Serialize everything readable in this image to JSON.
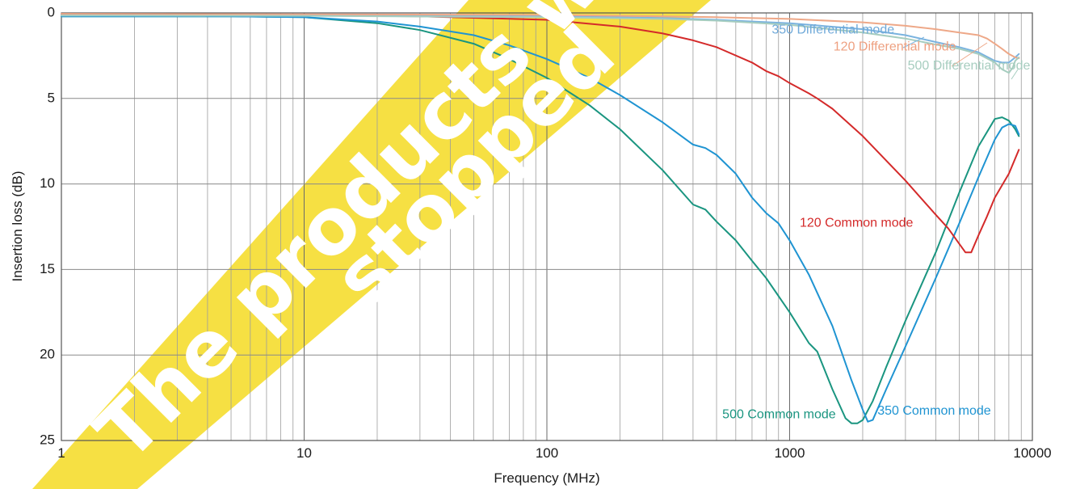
{
  "chart_data": {
    "type": "line",
    "xlabel": "Frequency (MHz)",
    "ylabel": "Insertion loss (dB)",
    "x_scale": "log",
    "xlim": [
      1,
      10000
    ],
    "ylim": [
      0,
      25
    ],
    "y_inverted": true,
    "grid": true,
    "x_ticks": [
      1,
      10,
      100,
      1000,
      10000
    ],
    "x_tick_labels": [
      "1",
      "10",
      "100",
      "1000",
      "10000"
    ],
    "y_ticks": [
      0,
      5,
      10,
      15,
      20,
      25
    ],
    "y_tick_labels": [
      "0",
      "5",
      "10",
      "15",
      "20",
      "25"
    ],
    "series": [
      {
        "name": "500 Common mode",
        "color": "#1a9580",
        "x": [
          1,
          5,
          10,
          20,
          30,
          50,
          70,
          100,
          150,
          200,
          300,
          400,
          450,
          500,
          600,
          700,
          800,
          1000,
          1200,
          1300,
          1500,
          1700,
          1800,
          1900,
          2000,
          2200,
          2500,
          3000,
          4000,
          5000,
          6000,
          7000,
          7500,
          8000,
          8500,
          8800
        ],
        "y": [
          0.2,
          0.2,
          0.25,
          0.6,
          1.0,
          1.8,
          2.7,
          3.8,
          5.4,
          6.8,
          9.2,
          11.2,
          11.5,
          12.2,
          13.3,
          14.5,
          15.5,
          17.5,
          19.3,
          19.8,
          22.0,
          23.7,
          24.0,
          24.0,
          23.8,
          22.7,
          20.7,
          18.0,
          14.0,
          10.5,
          7.8,
          6.2,
          6.1,
          6.3,
          6.8,
          7.2
        ]
      },
      {
        "name": "350 Common mode",
        "color": "#1f94d2",
        "x": [
          1,
          5,
          10,
          20,
          30,
          50,
          70,
          100,
          150,
          200,
          300,
          400,
          450,
          500,
          600,
          700,
          800,
          900,
          1000,
          1200,
          1500,
          1800,
          2000,
          2100,
          2200,
          2500,
          3000,
          4000,
          5000,
          6000,
          7000,
          7500,
          8000,
          8500,
          8800
        ],
        "y": [
          0.2,
          0.2,
          0.25,
          0.5,
          0.8,
          1.3,
          1.9,
          2.7,
          3.8,
          4.8,
          6.4,
          7.7,
          7.9,
          8.3,
          9.4,
          10.8,
          11.7,
          12.3,
          13.3,
          15.3,
          18.3,
          21.5,
          23.2,
          23.9,
          23.8,
          22.0,
          19.5,
          15.5,
          12.3,
          9.6,
          7.4,
          6.7,
          6.5,
          6.6,
          7.1
        ]
      },
      {
        "name": "120 Common mode",
        "color": "#d42a2a",
        "x": [
          1,
          10,
          30,
          100,
          200,
          300,
          400,
          500,
          700,
          800,
          900,
          1000,
          1200,
          1300,
          1500,
          2000,
          3000,
          4000,
          4500,
          5000,
          5300,
          5600,
          6000,
          6500,
          7000,
          8000,
          8800
        ],
        "y": [
          0.1,
          0.15,
          0.2,
          0.4,
          0.8,
          1.2,
          1.6,
          2.0,
          2.9,
          3.4,
          3.7,
          4.1,
          4.7,
          5.0,
          5.6,
          7.2,
          9.8,
          11.8,
          12.6,
          13.5,
          14.0,
          14.0,
          13.0,
          11.9,
          10.8,
          9.4,
          8.0
        ]
      },
      {
        "name": "350 Differential mode",
        "color": "#7ab3df",
        "x": [
          1,
          10,
          100,
          300,
          500,
          1000,
          2000,
          3000,
          4000,
          5000,
          6000,
          7000,
          7500,
          8000,
          8500,
          8800
        ],
        "y": [
          0.1,
          0.12,
          0.18,
          0.3,
          0.4,
          0.6,
          0.95,
          1.3,
          1.7,
          2.0,
          2.3,
          2.8,
          2.9,
          2.9,
          2.6,
          2.4
        ]
      },
      {
        "name": "120 Differential mode",
        "color": "#eea888",
        "x": [
          1,
          10,
          100,
          300,
          500,
          1000,
          2000,
          3000,
          4000,
          5000,
          6000,
          6500,
          7000,
          7500,
          8000,
          8500,
          8800
        ],
        "y": [
          0.05,
          0.08,
          0.12,
          0.2,
          0.25,
          0.35,
          0.55,
          0.75,
          0.95,
          1.15,
          1.3,
          1.5,
          1.8,
          2.1,
          2.4,
          2.6,
          2.65
        ]
      },
      {
        "name": "500  Differential mode",
        "color": "#a6cdbf",
        "x": [
          1,
          10,
          100,
          300,
          500,
          1000,
          2000,
          3000,
          4000,
          5000,
          6000,
          7000,
          7500,
          8000,
          8300,
          8500,
          8800
        ],
        "y": [
          0.15,
          0.17,
          0.25,
          0.35,
          0.45,
          0.7,
          1.15,
          1.5,
          1.85,
          2.1,
          2.4,
          2.9,
          3.3,
          3.5,
          3.2,
          2.8,
          2.6
        ]
      }
    ],
    "annotations": [
      {
        "text": "350 Differential mode",
        "color": "#6fa9d9",
        "x": 2700,
        "y": 1.0,
        "anchor": "end"
      },
      {
        "text": "120 Differential mode",
        "color": "#eea080",
        "x": 4850,
        "y": 2.0,
        "anchor": "end"
      },
      {
        "text": "500  Differential mode",
        "color": "#a6cdbf",
        "x": 9800,
        "y": 3.1,
        "anchor": "end"
      },
      {
        "text": "120 Common mode",
        "color": "#d42a2a",
        "x": 1100,
        "y": 12.3,
        "anchor": "start"
      },
      {
        "text": "500 Common mode",
        "color": "#1a9580",
        "x": 1550,
        "y": 23.5,
        "anchor": "end"
      },
      {
        "text": "350 Common mode",
        "color": "#1f94d2",
        "x": 2300,
        "y": 23.3,
        "anchor": "start"
      }
    ],
    "watermark": {
      "line1": "The products w",
      "line2": "stopped",
      "color": "#f6e043"
    }
  }
}
